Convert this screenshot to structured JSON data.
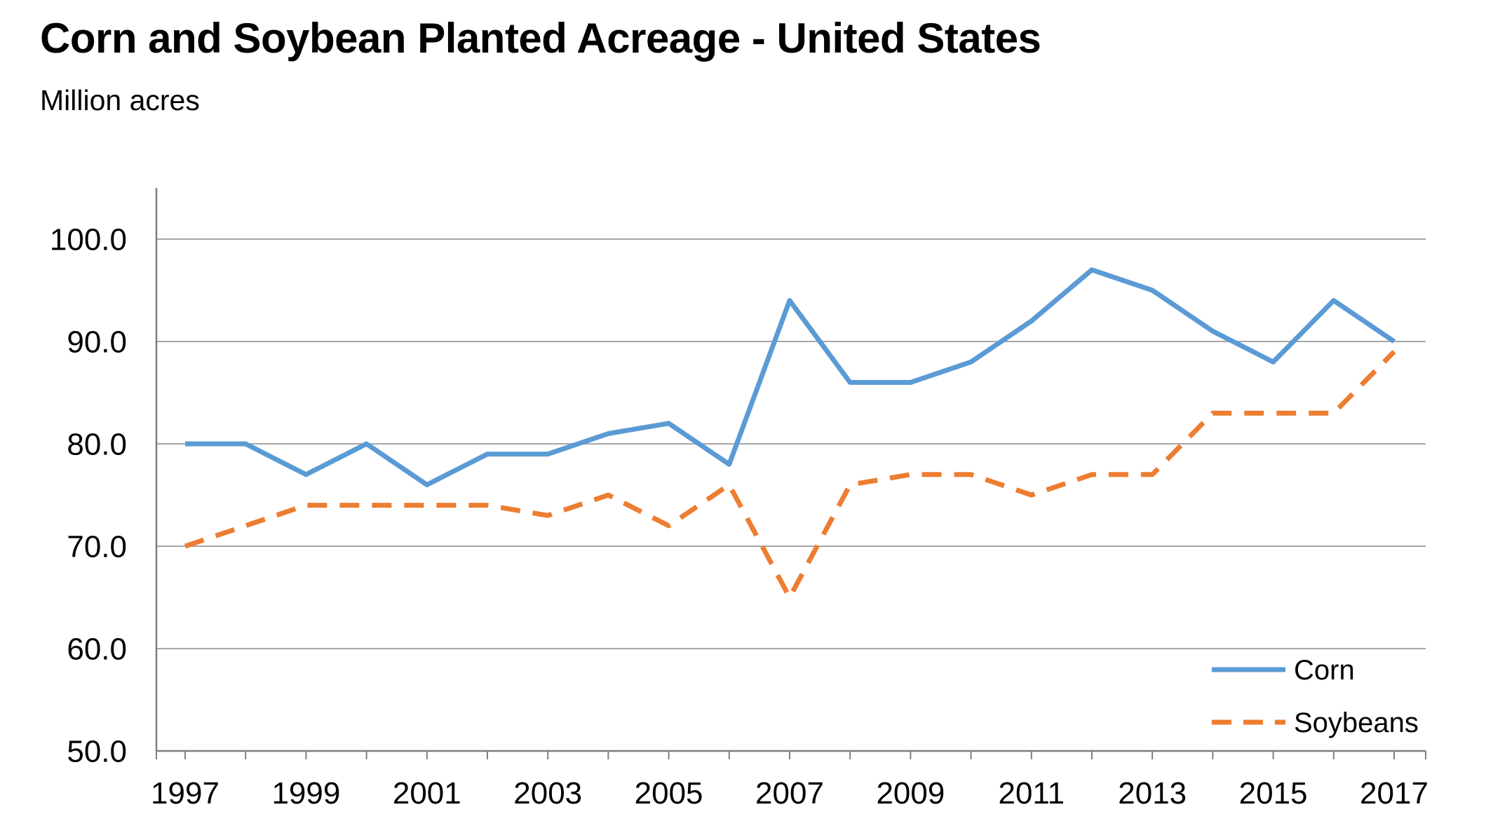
{
  "page": {
    "background_color": "#ffffff",
    "text_color": "#000000"
  },
  "header": {
    "title": "Corn and Soybean Planted Acreage - United States",
    "unit_label": "Million acres"
  },
  "legend": {
    "entries": [
      {
        "label": "Corn"
      },
      {
        "label": "Soybeans"
      }
    ]
  },
  "chart_data": {
    "type": "line",
    "title": "Corn and Soybean Planted Acreage - United States",
    "xlabel": "",
    "ylabel": "Million acres",
    "x": [
      1997,
      1998,
      1999,
      2000,
      2001,
      2002,
      2003,
      2004,
      2005,
      2006,
      2007,
      2008,
      2009,
      2010,
      2011,
      2012,
      2013,
      2014,
      2015,
      2016,
      2017
    ],
    "series": [
      {
        "name": "Corn",
        "color": "#5B9BD5",
        "dashed": false,
        "values": [
          80,
          80,
          77,
          80,
          76,
          79,
          79,
          81,
          82,
          78,
          94,
          86,
          86,
          88,
          92,
          97,
          95,
          91,
          88,
          94,
          90
        ]
      },
      {
        "name": "Soybeans",
        "color": "#ED7D31",
        "dashed": true,
        "values": [
          70,
          72,
          74,
          74,
          74,
          74,
          73,
          75,
          72,
          76,
          65,
          76,
          77,
          77,
          75,
          77,
          77,
          83,
          83,
          83,
          89
        ]
      }
    ],
    "ylim": [
      50,
      105
    ],
    "yticks": [
      50,
      60,
      70,
      80,
      90,
      100
    ],
    "ytick_labels": [
      "50.0",
      "60.0",
      "70.0",
      "80.0",
      "90.0",
      "100.0"
    ],
    "xtick_label_years": [
      1997,
      1999,
      2001,
      2003,
      2005,
      2007,
      2009,
      2011,
      2013,
      2015,
      2017
    ],
    "grid": "horizontal",
    "legend_position": "lower-right",
    "grid_color": "#a6a6a6",
    "axis_color": "#7f7f7f"
  }
}
